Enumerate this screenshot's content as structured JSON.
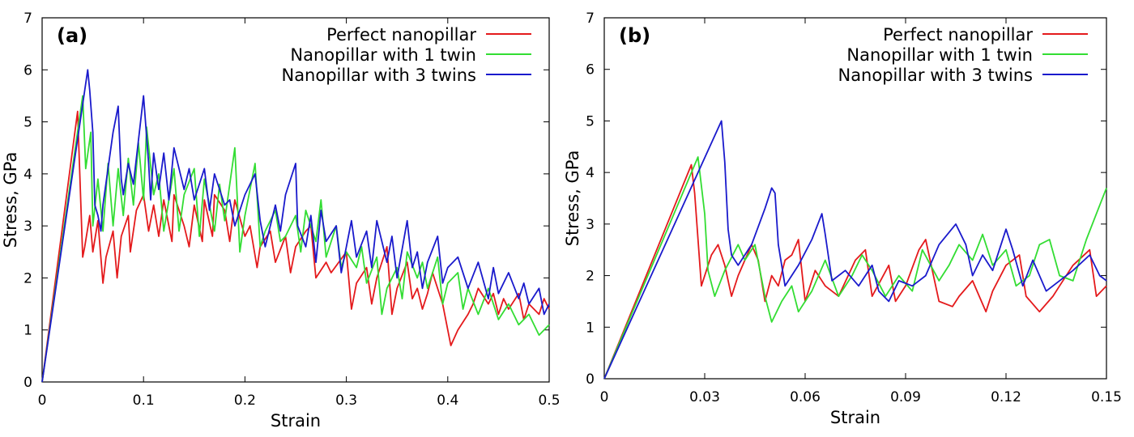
{
  "chart_data": [
    {
      "type": "line",
      "panel_label": "(a)",
      "xlabel": "Strain",
      "ylabel": "Stress, GPa",
      "xlim": [
        0,
        0.5
      ],
      "ylim": [
        0,
        7
      ],
      "xticks": [
        0,
        0.1,
        0.2,
        0.3,
        0.4,
        0.5
      ],
      "xtick_labels": [
        "0",
        "0.1",
        "0.2",
        "0.3",
        "0.4",
        "0.5"
      ],
      "yticks": [
        0,
        1,
        2,
        3,
        4,
        5,
        6,
        7
      ],
      "ytick_labels": [
        "0",
        "1",
        "2",
        "3",
        "4",
        "5",
        "6",
        "7"
      ],
      "legend_position": "top-right",
      "series": [
        {
          "name": "Perfect nanopillar",
          "color": "#e41a1c",
          "x": [
            0,
            0.035,
            0.04,
            0.042,
            0.047,
            0.05,
            0.055,
            0.06,
            0.063,
            0.07,
            0.074,
            0.078,
            0.085,
            0.087,
            0.093,
            0.1,
            0.105,
            0.11,
            0.115,
            0.12,
            0.128,
            0.13,
            0.14,
            0.145,
            0.15,
            0.158,
            0.16,
            0.168,
            0.17,
            0.18,
            0.185,
            0.19,
            0.2,
            0.205,
            0.212,
            0.215,
            0.225,
            0.23,
            0.24,
            0.245,
            0.25,
            0.26,
            0.265,
            0.27,
            0.28,
            0.285,
            0.3,
            0.305,
            0.31,
            0.32,
            0.325,
            0.33,
            0.34,
            0.345,
            0.35,
            0.36,
            0.365,
            0.37,
            0.375,
            0.38,
            0.385,
            0.395,
            0.4,
            0.403,
            0.41,
            0.42,
            0.425,
            0.43,
            0.44,
            0.445,
            0.45,
            0.455,
            0.46,
            0.47,
            0.475,
            0.48,
            0.49,
            0.495,
            0.5
          ],
          "y": [
            0,
            5.2,
            2.4,
            2.6,
            3.2,
            2.5,
            3.1,
            1.9,
            2.4,
            2.9,
            2.0,
            2.8,
            3.2,
            2.5,
            3.3,
            3.6,
            2.9,
            3.4,
            2.8,
            3.5,
            2.7,
            3.6,
            3.0,
            2.6,
            3.4,
            2.7,
            3.5,
            2.8,
            3.6,
            3.3,
            2.7,
            3.5,
            2.8,
            3.0,
            2.2,
            2.6,
            2.9,
            2.3,
            2.8,
            2.1,
            2.6,
            2.9,
            3.0,
            2.0,
            2.3,
            2.1,
            2.5,
            1.4,
            1.9,
            2.2,
            1.5,
            2.0,
            2.6,
            1.3,
            1.8,
            2.3,
            1.6,
            1.8,
            1.4,
            1.7,
            2.1,
            1.5,
            1.0,
            0.7,
            1.0,
            1.3,
            1.5,
            1.8,
            1.5,
            1.7,
            1.3,
            1.6,
            1.4,
            1.7,
            1.2,
            1.5,
            1.3,
            1.6,
            1.4
          ]
        },
        {
          "name": "Nanopillar with 1 twin",
          "color": "#33dd33",
          "x": [
            0,
            0.04,
            0.043,
            0.048,
            0.05,
            0.055,
            0.06,
            0.065,
            0.07,
            0.075,
            0.08,
            0.085,
            0.09,
            0.095,
            0.1,
            0.103,
            0.11,
            0.115,
            0.12,
            0.13,
            0.135,
            0.14,
            0.15,
            0.155,
            0.16,
            0.17,
            0.175,
            0.18,
            0.19,
            0.195,
            0.2,
            0.21,
            0.215,
            0.22,
            0.23,
            0.235,
            0.24,
            0.25,
            0.255,
            0.26,
            0.27,
            0.275,
            0.28,
            0.29,
            0.295,
            0.3,
            0.31,
            0.315,
            0.32,
            0.33,
            0.335,
            0.34,
            0.35,
            0.355,
            0.36,
            0.37,
            0.375,
            0.38,
            0.39,
            0.395,
            0.4,
            0.41,
            0.415,
            0.42,
            0.43,
            0.44,
            0.45,
            0.46,
            0.47,
            0.48,
            0.49,
            0.5
          ],
          "y": [
            0,
            5.5,
            4.1,
            4.8,
            3.0,
            3.9,
            2.9,
            4.2,
            3.0,
            4.1,
            3.2,
            4.3,
            3.4,
            4.6,
            3.5,
            4.9,
            3.6,
            4.0,
            2.9,
            4.1,
            2.9,
            3.6,
            4.1,
            2.8,
            3.9,
            2.9,
            3.8,
            3.1,
            4.5,
            2.5,
            3.2,
            4.2,
            2.6,
            2.9,
            3.3,
            2.7,
            2.8,
            3.2,
            2.5,
            3.3,
            2.7,
            3.5,
            2.4,
            3.0,
            2.2,
            2.5,
            2.2,
            2.6,
            1.9,
            2.4,
            1.3,
            1.8,
            2.2,
            1.6,
            2.5,
            2.0,
            2.3,
            1.8,
            2.4,
            1.5,
            1.9,
            2.1,
            1.4,
            1.8,
            1.3,
            1.8,
            1.2,
            1.5,
            1.1,
            1.3,
            0.9,
            1.1
          ]
        },
        {
          "name": "Nanopillar with 3 twins",
          "color": "#1a1acc",
          "x": [
            0,
            0.045,
            0.047,
            0.05,
            0.052,
            0.055,
            0.058,
            0.06,
            0.07,
            0.075,
            0.078,
            0.08,
            0.085,
            0.09,
            0.1,
            0.105,
            0.107,
            0.11,
            0.115,
            0.12,
            0.125,
            0.13,
            0.14,
            0.145,
            0.15,
            0.16,
            0.165,
            0.17,
            0.18,
            0.185,
            0.19,
            0.2,
            0.21,
            0.215,
            0.22,
            0.23,
            0.235,
            0.24,
            0.25,
            0.252,
            0.26,
            0.265,
            0.27,
            0.275,
            0.28,
            0.29,
            0.295,
            0.3,
            0.305,
            0.31,
            0.32,
            0.325,
            0.33,
            0.34,
            0.345,
            0.35,
            0.36,
            0.365,
            0.37,
            0.375,
            0.38,
            0.39,
            0.395,
            0.4,
            0.41,
            0.42,
            0.43,
            0.44,
            0.445,
            0.45,
            0.46,
            0.47,
            0.475,
            0.48,
            0.49,
            0.495,
            0.5
          ],
          "y": [
            0,
            6.0,
            5.6,
            4.8,
            3.4,
            3.2,
            2.9,
            3.4,
            4.8,
            5.3,
            3.9,
            3.6,
            4.2,
            3.8,
            5.5,
            4.2,
            3.5,
            4.4,
            3.7,
            4.4,
            3.5,
            4.5,
            3.7,
            4.1,
            3.5,
            4.1,
            3.3,
            4.0,
            3.4,
            3.5,
            3.0,
            3.6,
            4.0,
            3.1,
            2.6,
            3.4,
            2.9,
            3.6,
            4.2,
            3.0,
            2.6,
            3.2,
            2.3,
            3.3,
            2.7,
            3.0,
            2.1,
            2.6,
            3.1,
            2.4,
            2.9,
            2.2,
            3.1,
            2.3,
            2.8,
            2.0,
            3.1,
            2.2,
            2.5,
            1.8,
            2.3,
            2.8,
            1.9,
            2.2,
            2.4,
            1.8,
            2.3,
            1.6,
            2.2,
            1.7,
            2.1,
            1.6,
            1.9,
            1.5,
            1.8,
            1.3,
            1.5
          ]
        }
      ]
    },
    {
      "type": "line",
      "panel_label": "(b)",
      "xlabel": "Strain",
      "ylabel": "Stress, GPa",
      "xlim": [
        0,
        0.15
      ],
      "ylim": [
        0,
        7
      ],
      "xticks": [
        0,
        0.03,
        0.06,
        0.09,
        0.12,
        0.15
      ],
      "xtick_labels": [
        "0",
        "0.03",
        "0.06",
        "0.09",
        "0.12",
        "0.15"
      ],
      "yticks": [
        0,
        1,
        2,
        3,
        4,
        5,
        6,
        7
      ],
      "ytick_labels": [
        "0",
        "1",
        "2",
        "3",
        "4",
        "5",
        "6",
        "7"
      ],
      "legend_position": "top-right",
      "series": [
        {
          "name": "Perfect nanopillar",
          "color": "#e41a1c",
          "x": [
            0,
            0.026,
            0.027,
            0.029,
            0.032,
            0.034,
            0.036,
            0.038,
            0.04,
            0.044,
            0.046,
            0.048,
            0.05,
            0.052,
            0.054,
            0.056,
            0.058,
            0.06,
            0.063,
            0.066,
            0.07,
            0.075,
            0.078,
            0.08,
            0.085,
            0.087,
            0.09,
            0.094,
            0.096,
            0.1,
            0.104,
            0.106,
            0.11,
            0.114,
            0.116,
            0.12,
            0.124,
            0.126,
            0.13,
            0.134,
            0.136,
            0.14,
            0.145,
            0.147,
            0.15
          ],
          "y": [
            0,
            4.15,
            3.6,
            1.8,
            2.4,
            2.6,
            2.2,
            1.6,
            2.0,
            2.6,
            2.3,
            1.5,
            2.0,
            1.8,
            2.3,
            2.4,
            2.7,
            1.5,
            2.1,
            1.8,
            1.6,
            2.3,
            2.5,
            1.6,
            2.2,
            1.5,
            1.8,
            2.5,
            2.7,
            1.5,
            1.4,
            1.6,
            1.9,
            1.3,
            1.7,
            2.2,
            2.4,
            1.6,
            1.3,
            1.6,
            1.8,
            2.2,
            2.5,
            1.6,
            1.8
          ]
        },
        {
          "name": "Nanopillar with 1 twin",
          "color": "#33dd33",
          "x": [
            0,
            0.028,
            0.03,
            0.031,
            0.033,
            0.036,
            0.04,
            0.042,
            0.045,
            0.048,
            0.05,
            0.053,
            0.056,
            0.058,
            0.062,
            0.066,
            0.07,
            0.074,
            0.077,
            0.08,
            0.084,
            0.088,
            0.092,
            0.095,
            0.1,
            0.103,
            0.106,
            0.11,
            0.113,
            0.116,
            0.12,
            0.123,
            0.127,
            0.13,
            0.133,
            0.136,
            0.14,
            0.144,
            0.147,
            0.15
          ],
          "y": [
            0,
            4.3,
            3.2,
            2.1,
            1.6,
            2.1,
            2.6,
            2.3,
            2.6,
            1.6,
            1.1,
            1.5,
            1.8,
            1.3,
            1.7,
            2.3,
            1.6,
            2.0,
            2.4,
            2.1,
            1.6,
            2.0,
            1.7,
            2.5,
            1.9,
            2.2,
            2.6,
            2.3,
            2.8,
            2.2,
            2.5,
            1.8,
            2.0,
            2.6,
            2.7,
            2.0,
            1.9,
            2.7,
            3.2,
            3.7
          ]
        },
        {
          "name": "Nanopillar with 3 twins",
          "color": "#1a1acc",
          "x": [
            0,
            0.035,
            0.036,
            0.037,
            0.038,
            0.04,
            0.044,
            0.048,
            0.05,
            0.051,
            0.052,
            0.054,
            0.058,
            0.062,
            0.065,
            0.066,
            0.068,
            0.072,
            0.076,
            0.08,
            0.082,
            0.085,
            0.088,
            0.092,
            0.096,
            0.1,
            0.105,
            0.108,
            0.11,
            0.113,
            0.116,
            0.12,
            0.122,
            0.125,
            0.128,
            0.132,
            0.136,
            0.14,
            0.145,
            0.148,
            0.15
          ],
          "y": [
            0,
            5.0,
            4.2,
            2.9,
            2.4,
            2.2,
            2.6,
            3.3,
            3.7,
            3.6,
            2.6,
            1.8,
            2.2,
            2.7,
            3.2,
            2.8,
            1.9,
            2.1,
            1.8,
            2.2,
            1.7,
            1.5,
            1.9,
            1.8,
            2.0,
            2.6,
            3.0,
            2.6,
            2.0,
            2.4,
            2.1,
            2.9,
            2.5,
            1.8,
            2.3,
            1.7,
            1.9,
            2.1,
            2.4,
            2.0,
            1.9
          ]
        }
      ]
    }
  ]
}
